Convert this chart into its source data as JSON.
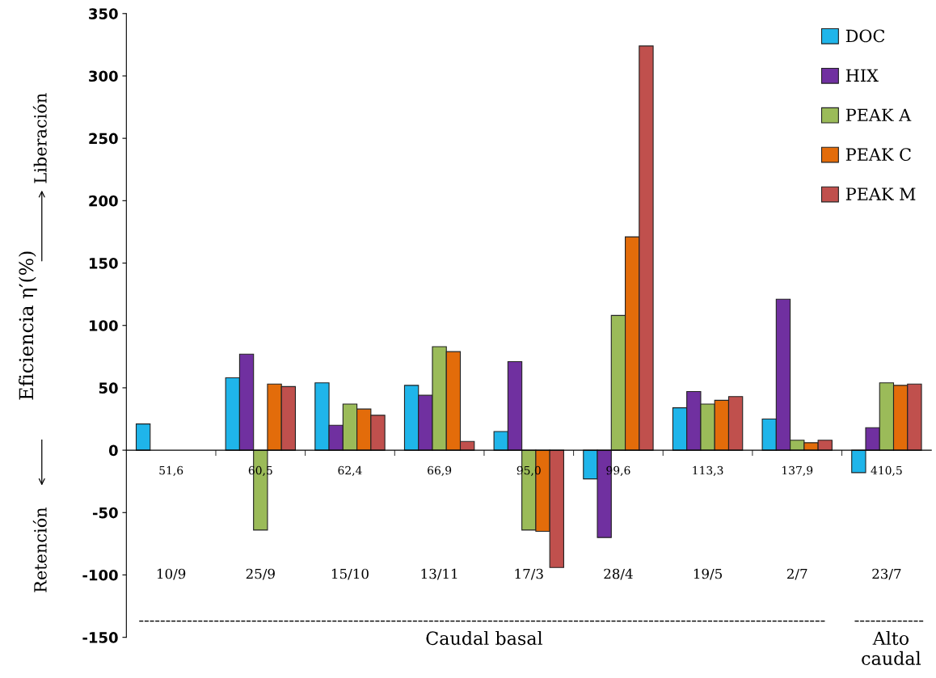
{
  "chart_data": {
    "type": "bar",
    "ylabel": "Eficiencia η′(%)",
    "categories": [
      "51,6",
      "60,5",
      "62,4",
      "66,9",
      "95,0",
      "99,6",
      "113,3",
      "137,9",
      "410,5"
    ],
    "series": [
      {
        "name": "DOC",
        "color": "#1fb5ea",
        "values": [
          21,
          58,
          54,
          52,
          15,
          -23,
          34,
          25,
          -18
        ]
      },
      {
        "name": "HIX",
        "color": "#7030a0",
        "values": [
          null,
          77,
          20,
          44,
          71,
          -70,
          47,
          121,
          18
        ]
      },
      {
        "name": "PEAK A",
        "color": "#9bbb59",
        "values": [
          null,
          -64,
          37,
          83,
          -64,
          108,
          37,
          8,
          54
        ]
      },
      {
        "name": "PEAK C",
        "color": "#e36c0a",
        "values": [
          null,
          53,
          33,
          79,
          -65,
          171,
          40,
          6,
          52
        ]
      },
      {
        "name": "PEAK M",
        "color": "#c0504d",
        "values": [
          null,
          51,
          28,
          7,
          -94,
          324,
          43,
          8,
          53
        ]
      }
    ],
    "ylim": [
      -150,
      350
    ],
    "yticks": [
      -150,
      -100,
      -50,
      0,
      50,
      100,
      150,
      200,
      250,
      300,
      350
    ],
    "grid": false,
    "legend": "top right",
    "annotations": [
      "10/9",
      "25/9",
      "15/10",
      "13/11",
      "17/3",
      "28/4",
      "19/5",
      "2/7",
      "23/7",
      "Liberación",
      "Retención",
      "Caudal basal",
      "Alto caudal"
    ]
  }
}
